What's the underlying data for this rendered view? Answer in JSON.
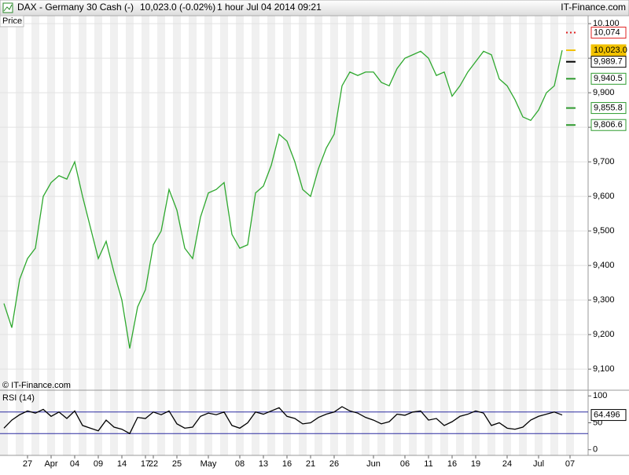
{
  "header": {
    "instrument": "DAX - Germany 30 Cash (-)",
    "quote": "10,023.0 (-0.02%)",
    "period": "1 hour  Jul 04 2014 09:21",
    "site": "IT-Finance.com",
    "copyright": "© IT-Finance.com"
  },
  "chart_data": [
    {
      "type": "line",
      "title": "Price",
      "color": "#2ea82e",
      "categories": [
        null,
        null,
        null,
        "27",
        null,
        null,
        "Apr",
        null,
        null,
        "04",
        null,
        null,
        "09",
        null,
        null,
        "14",
        null,
        null,
        "17",
        "22",
        null,
        null,
        "25",
        null,
        null,
        null,
        "May",
        null,
        null,
        null,
        "08",
        null,
        null,
        "13",
        null,
        null,
        "16",
        null,
        null,
        "21",
        null,
        null,
        "26",
        null,
        null,
        null,
        null,
        "Jun",
        null,
        null,
        null,
        "06",
        null,
        null,
        "11",
        null,
        null,
        "16",
        null,
        null,
        "19",
        null,
        null,
        null,
        "24",
        null,
        null,
        null,
        "Jul",
        null,
        null,
        null,
        "07"
      ],
      "values": [
        9290,
        9220,
        9360,
        9420,
        9450,
        9600,
        9640,
        9660,
        9650,
        9700,
        9600,
        9510,
        9420,
        9470,
        9380,
        9300,
        9160,
        9280,
        9330,
        9460,
        9500,
        9620,
        9560,
        9450,
        9420,
        9540,
        9610,
        9620,
        9640,
        9490,
        9450,
        9460,
        9610,
        9630,
        9690,
        9780,
        9760,
        9700,
        9620,
        9600,
        9680,
        9740,
        9780,
        9920,
        9960,
        9950,
        9960,
        9960,
        9930,
        9920,
        9970,
        10000,
        10010,
        10020,
        10000,
        9950,
        9960,
        9890,
        9920,
        9960,
        9990,
        10020,
        10010,
        9940,
        9920,
        9880,
        9830,
        9820,
        9850,
        9900,
        9920,
        10023,
        null
      ],
      "ylim": [
        9039,
        10123
      ],
      "yticks": [
        {
          "value": 9100,
          "label": "9,100"
        },
        {
          "value": 9200,
          "label": "9,200"
        },
        {
          "value": 9300,
          "label": "9,300"
        },
        {
          "value": 9400,
          "label": "9,400"
        },
        {
          "value": 9500,
          "label": "9,500"
        },
        {
          "value": 9600,
          "label": "9,600"
        },
        {
          "value": 9700,
          "label": "9,700"
        },
        {
          "value": 9800,
          "label": "9,800"
        },
        {
          "value": 9900,
          "label": "9,900"
        },
        {
          "value": 10000,
          "label": "10,000"
        },
        {
          "value": 10100,
          "label": "10.100"
        }
      ],
      "price_markers": [
        {
          "value": 10074,
          "label": "10,074",
          "color": "#e02020"
        },
        {
          "value": 10023,
          "label": "10,023.0",
          "color": "#f2c200"
        },
        {
          "value": 9989.7,
          "label": "9,989.7",
          "color": "#000000"
        },
        {
          "value": 9940.5,
          "label": "9,940.5",
          "color": "#2e9a2e"
        },
        {
          "value": 9855.8,
          "label": "9,855.8",
          "color": "#2e9a2e"
        },
        {
          "value": 9806.6,
          "label": "9,806.6",
          "color": "#2e9a2e"
        }
      ]
    },
    {
      "type": "line",
      "title": "RSI (14)",
      "color": "#000000",
      "values": [
        40,
        55,
        65,
        72,
        68,
        75,
        62,
        70,
        58,
        72,
        45,
        40,
        35,
        55,
        42,
        38,
        30,
        60,
        58,
        70,
        65,
        72,
        48,
        40,
        42,
        62,
        68,
        65,
        70,
        45,
        40,
        50,
        70,
        66,
        72,
        78,
        62,
        58,
        48,
        50,
        60,
        66,
        70,
        80,
        72,
        68,
        60,
        55,
        48,
        52,
        66,
        64,
        70,
        72,
        55,
        58,
        45,
        52,
        62,
        66,
        72,
        68,
        45,
        50,
        40,
        38,
        42,
        55,
        62,
        66,
        70,
        64.496,
        null
      ],
      "ylim": [
        -10.6,
        110.6
      ],
      "yticks": [
        0,
        50,
        100
      ],
      "levels": [
        30,
        70
      ],
      "level_color": "#2a2aa0"
    }
  ]
}
